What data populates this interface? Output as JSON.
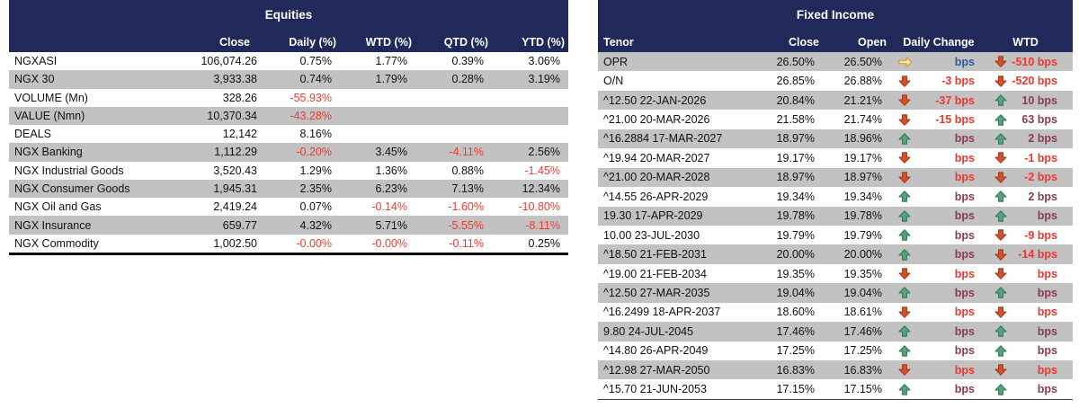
{
  "report": {
    "left_table_title": "Equities",
    "right_table_title": "Fixed Income",
    "unit_label": "bps"
  },
  "colors": {
    "header_navy": "#21295A",
    "stripe_gray": "#C2C2C2",
    "negative_red": "#F23B31",
    "change_red_text": "#EE372D",
    "change_up_text": "#8A3A54",
    "change_flat_text": "#2C5A9A",
    "arrow_up_green": "#57A27B",
    "arrow_down_red": "#D4512B",
    "arrow_flat_gold": "#F7DFA3"
  },
  "chart_data": [
    {
      "type": "table",
      "title": "Equities",
      "columns": [
        "",
        "Close",
        "Daily (%)",
        "WTD (%)",
        "QTD (%)",
        "YTD (%)"
      ],
      "rows": [
        [
          "NGXASI",
          "106,074.26",
          "0.75%",
          "1.77%",
          "0.39%",
          "3.06%"
        ],
        [
          "NGX 30",
          "3,933.38",
          "0.74%",
          "1.79%",
          "0.28%",
          "3.19%"
        ],
        [
          "VOLUME (Mn)",
          "328.26",
          "-55.93%",
          "",
          "",
          ""
        ],
        [
          "VALUE (Nmn)",
          "10,370.34",
          "-43.28%",
          "",
          "",
          ""
        ],
        [
          "DEALS",
          "12,142",
          "8.16%",
          "",
          "",
          ""
        ],
        [
          "NGX Banking",
          "1,112.29",
          "-0.20%",
          "3.45%",
          "-4.11%",
          "2.56%"
        ],
        [
          "NGX Industrial Goods",
          "3,520.43",
          "1.29%",
          "1.36%",
          "0.88%",
          "-1.45%"
        ],
        [
          "NGX Consumer Goods",
          "1,945.31",
          "2.35%",
          "6.23%",
          "7.13%",
          "12.34%"
        ],
        [
          "NGX Oil and Gas",
          "2,419.24",
          "0.07%",
          "-0.14%",
          "-1.60%",
          "-10.80%"
        ],
        [
          "NGX Insurance",
          "659.77",
          "4.32%",
          "5.71%",
          "-5.55%",
          "-8.11%"
        ],
        [
          "NGX Commodity",
          "1,002.50",
          "-0.00%",
          "-0.00%",
          "-0.11%",
          "0.25%"
        ]
      ]
    },
    {
      "type": "table",
      "title": "Fixed Income",
      "columns": [
        "Tenor",
        "Close",
        "Open",
        "Daily Change",
        "WTD"
      ],
      "rows": [
        [
          "OPR",
          "26.50%",
          "26.50%",
          {
            "dir": "flat",
            "text": "bps"
          },
          {
            "dir": "down",
            "text": "-510 bps"
          }
        ],
        [
          "O/N",
          "26.85%",
          "26.88%",
          {
            "dir": "down",
            "text": "-3 bps"
          },
          {
            "dir": "down",
            "text": "-520 bps"
          }
        ],
        [
          "^12.50 22-JAN-2026",
          "20.84%",
          "21.21%",
          {
            "dir": "down",
            "text": "-37 bps"
          },
          {
            "dir": "up",
            "text": "10 bps"
          }
        ],
        [
          "^21.00 20-MAR-2026",
          "21.58%",
          "21.74%",
          {
            "dir": "down",
            "text": "-15 bps"
          },
          {
            "dir": "up",
            "text": "63 bps"
          }
        ],
        [
          "^16.2884 17-MAR-2027",
          "18.97%",
          "18.96%",
          {
            "dir": "up",
            "text": "bps"
          },
          {
            "dir": "up",
            "text": "2 bps"
          }
        ],
        [
          "^19.94 20-MAR-2027",
          "19.17%",
          "19.17%",
          {
            "dir": "down",
            "text": "bps"
          },
          {
            "dir": "down",
            "text": "-1 bps"
          }
        ],
        [
          "^21.00 20-MAR-2028",
          "18.97%",
          "18.97%",
          {
            "dir": "down",
            "text": "bps"
          },
          {
            "dir": "down",
            "text": "-2 bps"
          }
        ],
        [
          "^14.55 26-APR-2029",
          "19.34%",
          "19.34%",
          {
            "dir": "up",
            "text": "bps"
          },
          {
            "dir": "up",
            "text": "2 bps"
          }
        ],
        [
          "19.30 17-APR-2029",
          "19.78%",
          "19.78%",
          {
            "dir": "up",
            "text": "bps"
          },
          {
            "dir": "up",
            "text": "bps"
          }
        ],
        [
          "10.00 23-JUL-2030",
          "19.79%",
          "19.79%",
          {
            "dir": "up",
            "text": "bps"
          },
          {
            "dir": "down",
            "text": "-9 bps"
          }
        ],
        [
          "^18.50 21-FEB-2031",
          "20.00%",
          "20.00%",
          {
            "dir": "up",
            "text": "bps"
          },
          {
            "dir": "down",
            "text": "-14 bps"
          }
        ],
        [
          "^19.00 21-FEB-2034",
          "19.35%",
          "19.35%",
          {
            "dir": "down",
            "text": "bps"
          },
          {
            "dir": "down",
            "text": "bps"
          }
        ],
        [
          "^12.50 27-MAR-2035",
          "19.04%",
          "19.04%",
          {
            "dir": "up",
            "text": "bps"
          },
          {
            "dir": "up",
            "text": "bps"
          }
        ],
        [
          "^16.2499 18-APR-2037",
          "18.60%",
          "18.61%",
          {
            "dir": "down",
            "text": "bps"
          },
          {
            "dir": "down",
            "text": "bps"
          }
        ],
        [
          "9.80 24-JUL-2045",
          "17.46%",
          "17.46%",
          {
            "dir": "up",
            "text": "bps"
          },
          {
            "dir": "up",
            "text": "bps"
          }
        ],
        [
          "^14.80 26-APR-2049",
          "17.25%",
          "17.25%",
          {
            "dir": "up",
            "text": "bps"
          },
          {
            "dir": "up",
            "text": "bps"
          }
        ],
        [
          "^12.98 27-MAR-2050",
          "16.83%",
          "16.83%",
          {
            "dir": "down",
            "text": "bps"
          },
          {
            "dir": "down",
            "text": "bps"
          }
        ],
        [
          "^15.70 21-JUN-2053",
          "17.15%",
          "17.15%",
          {
            "dir": "up",
            "text": "bps"
          },
          {
            "dir": "up",
            "text": "bps"
          }
        ]
      ]
    }
  ]
}
